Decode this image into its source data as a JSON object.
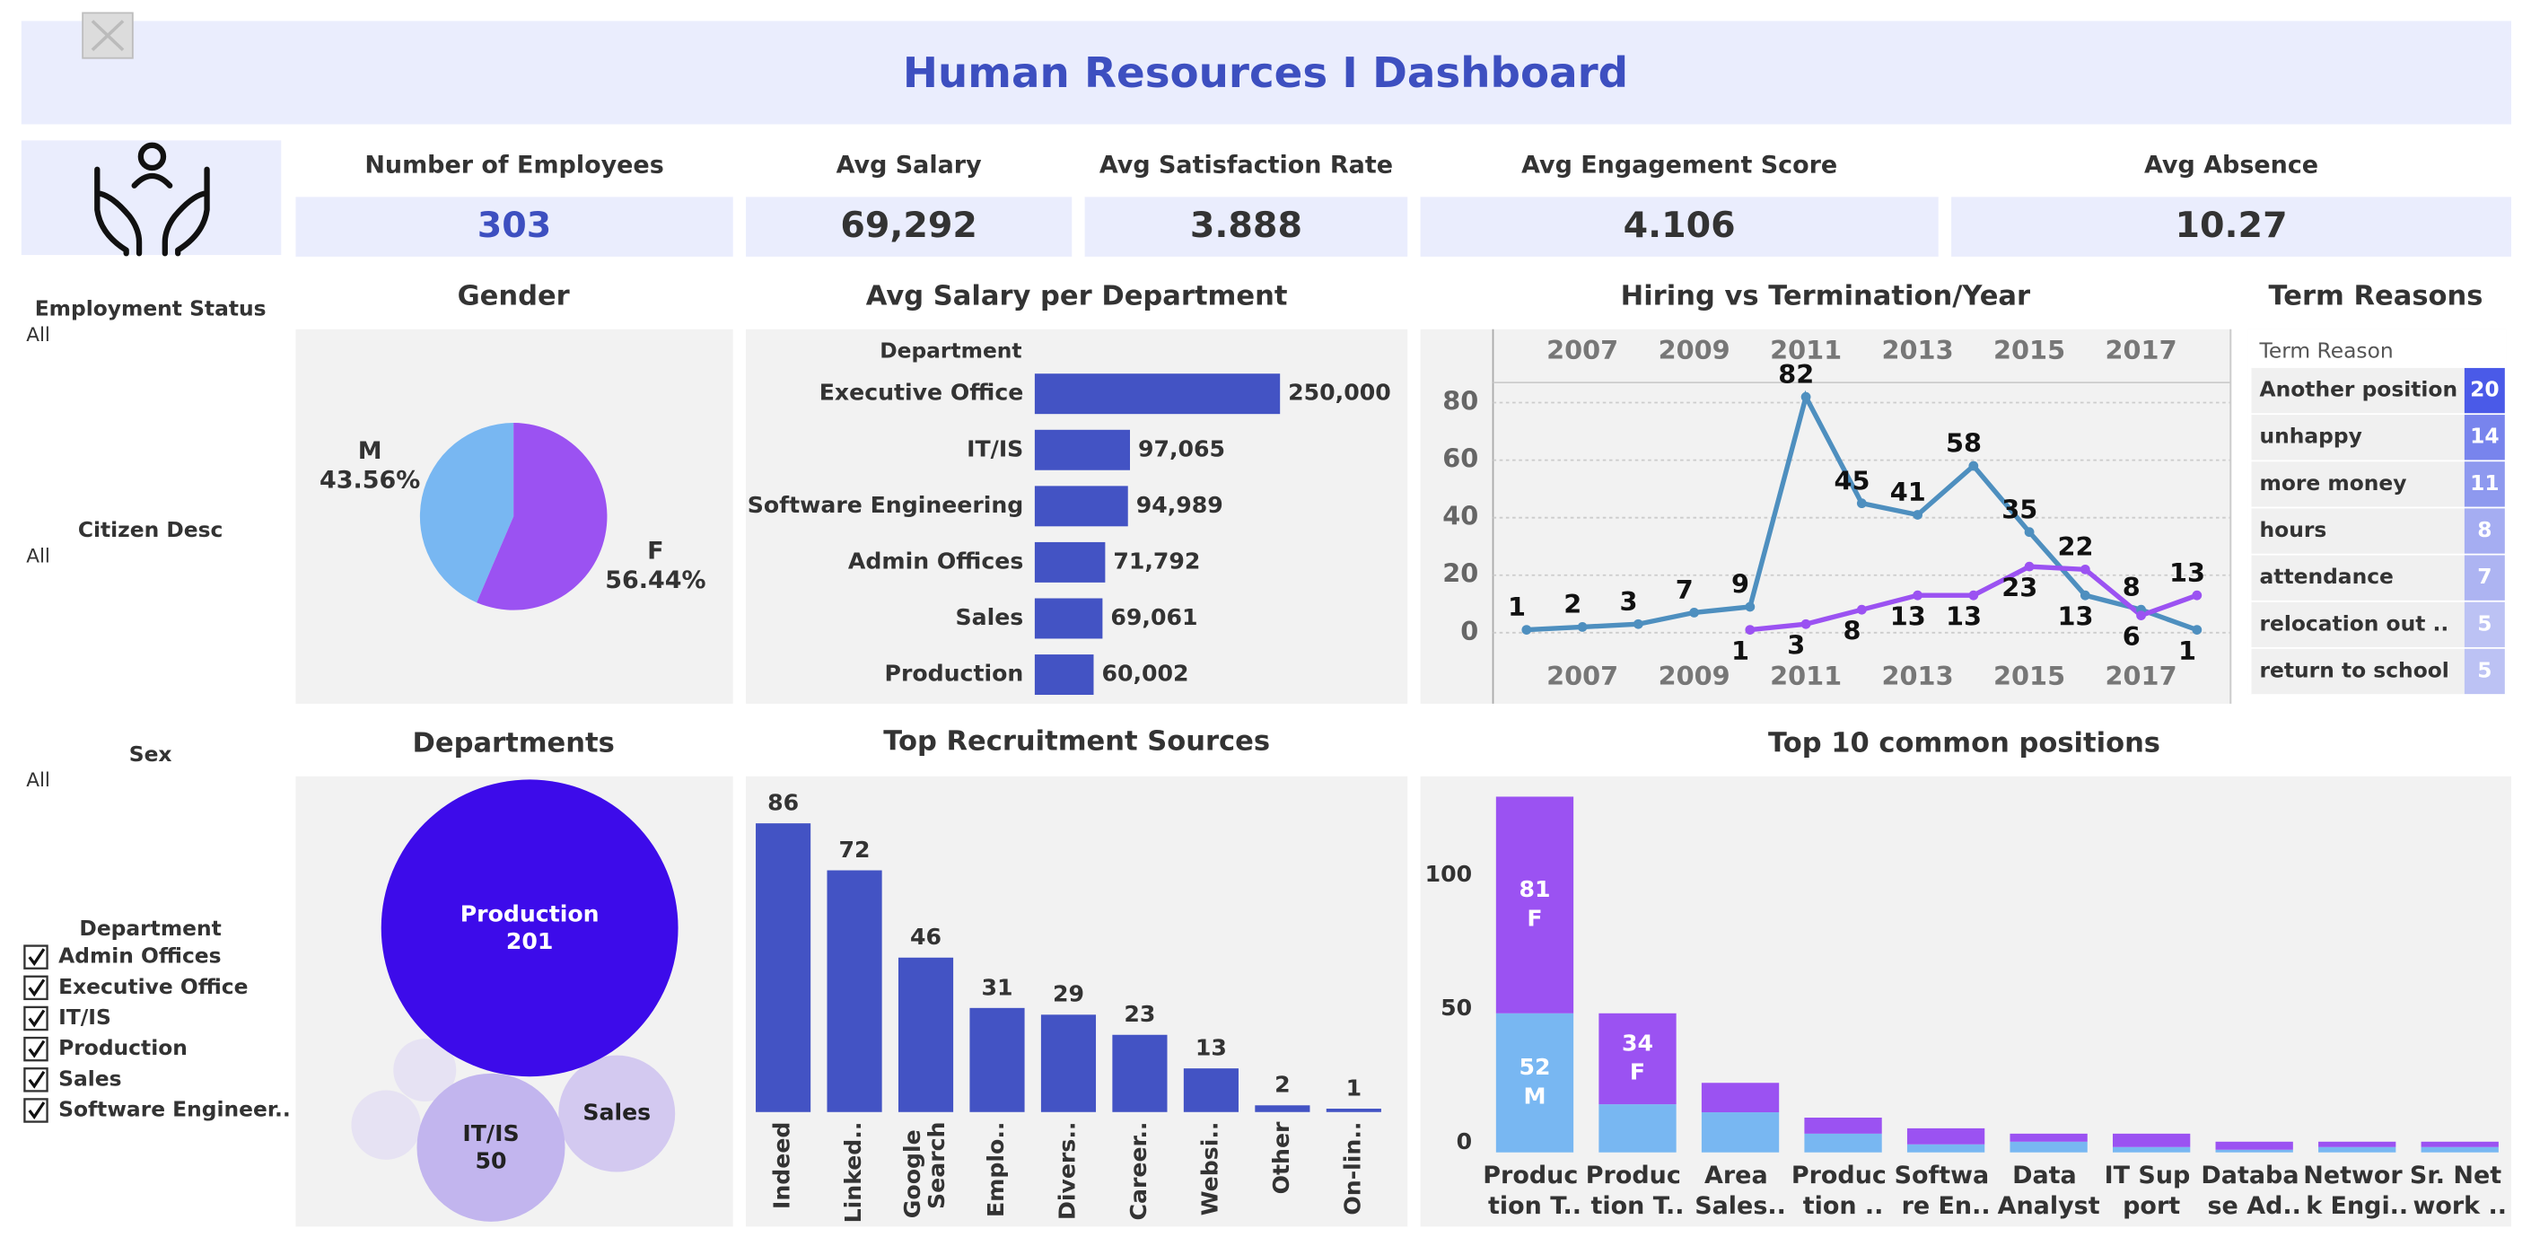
{
  "header": {
    "title": "Human Resources I Dashboard"
  },
  "kpis": [
    {
      "label": "Number of Employees",
      "value": "303"
    },
    {
      "label": "Avg Salary",
      "value": "69,292"
    },
    {
      "label": "Avg Satisfaction Rate",
      "value": "3.888"
    },
    {
      "label": "Avg Engagement Score",
      "value": "4.106"
    },
    {
      "label": "Avg Absence",
      "value": "10.27"
    }
  ],
  "filters": [
    {
      "title": "Employment Status",
      "value": "All"
    },
    {
      "title": "Citizen Desc",
      "value": "All"
    },
    {
      "title": "Sex",
      "value": "All"
    }
  ],
  "department_filter": {
    "title": "Department",
    "options": [
      "Admin Offices",
      "Executive Office",
      "IT/IS",
      "Production",
      "Sales",
      "Software Engineer.."
    ]
  },
  "chart_data": [
    {
      "type": "pie",
      "title": "Gender",
      "categories": [
        "M",
        "F"
      ],
      "values": [
        43.56,
        56.44
      ],
      "value_labels": [
        "43.56%",
        "56.44%"
      ],
      "colors": [
        "#78b7f2",
        "#9b52f2"
      ]
    },
    {
      "type": "hbar",
      "title": "Avg Salary per Department",
      "y_label": "Department",
      "categories": [
        "Executive Office",
        "IT/IS",
        "Software Engineering",
        "Admin Offices",
        "Sales",
        "Production"
      ],
      "values": [
        250000,
        97065,
        94989,
        71792,
        69061,
        60002
      ],
      "value_labels": [
        "250,000",
        "97,065",
        "94,989",
        "71,792",
        "69,061",
        "60,002"
      ],
      "color": "#4353c4",
      "xlim": [
        0,
        250000
      ]
    },
    {
      "type": "line",
      "title": "Hiring vs Termination/Year",
      "x": [
        2006,
        2007,
        2008,
        2009,
        2010,
        2011,
        2012,
        2013,
        2014,
        2015,
        2016,
        2017,
        2018
      ],
      "series": [
        {
          "color": "#4e8fbf",
          "values": [
            1,
            2,
            3,
            7,
            9,
            82,
            45,
            41,
            58,
            35,
            13,
            8,
            1
          ]
        },
        {
          "color": "#9b52f2",
          "values": [
            null,
            null,
            null,
            null,
            1,
            3,
            8,
            13,
            13,
            23,
            22,
            6,
            13
          ]
        }
      ],
      "xlim": [
        2005.4,
        2018.6
      ],
      "xticks": [
        2007,
        2009,
        2011,
        2013,
        2015,
        2017
      ],
      "ylim": [
        -23,
        87
      ],
      "yticks": [
        0,
        20,
        40,
        60,
        80
      ],
      "grid": true
    },
    {
      "type": "heatmap",
      "title": "Term Reasons",
      "column_label": "Term Reason",
      "categories": [
        "Another position",
        "unhappy",
        "more money",
        "hours",
        "attendance",
        "relocation out ..",
        "return to school"
      ],
      "values": [
        20,
        14,
        11,
        8,
        7,
        5,
        5
      ],
      "color": "#4a5ae8"
    },
    {
      "type": "bubble",
      "title": "Departments",
      "categories": [
        "Production",
        "IT/IS",
        "Sales",
        null,
        null,
        null
      ],
      "values": [
        201,
        50,
        31,
        11,
        9,
        1
      ],
      "value_labels": [
        "201",
        "50",
        null,
        null,
        null,
        null
      ],
      "colors": [
        "#3d0bea",
        "#c2b5ee",
        "#d3c9f0",
        "#e6e2f3",
        "#e6e2f3",
        "#e6e2f3"
      ]
    },
    {
      "type": "bar",
      "title": "Top Recruitment Sources",
      "categories": [
        "Indeed",
        "Linked..",
        "Google Search",
        "Emplo..",
        "Divers..",
        "Career..",
        "Websi..",
        "Other",
        "On-lin.."
      ],
      "values": [
        86,
        72,
        46,
        31,
        29,
        23,
        13,
        2,
        1
      ],
      "color": "#4353c4",
      "ylim": [
        0,
        100
      ]
    },
    {
      "type": "stacked",
      "title": "Top 10 common positions",
      "categories": [
        "Produc\ntion T..",
        "Produc\ntion T..",
        "Area\nSales..",
        "Produc\ntion ..",
        "Softwa\nre En..",
        "Data\nAnalyst",
        "IT Sup\nport",
        "Databa\nse Ad..",
        "Networ\nk Engi..",
        "Sr. Net\nwork .."
      ],
      "series": [
        {
          "name": "M",
          "color": "#78b7f2",
          "values": [
            52,
            18,
            15,
            7,
            3,
            4,
            2,
            1,
            2,
            2
          ]
        },
        {
          "name": "F",
          "color": "#9b52f2",
          "values": [
            81,
            34,
            11,
            6,
            6,
            3,
            5,
            3,
            2,
            2
          ]
        }
      ],
      "ylim": [
        0,
        140
      ],
      "yticks": [
        0,
        50,
        100
      ]
    }
  ]
}
